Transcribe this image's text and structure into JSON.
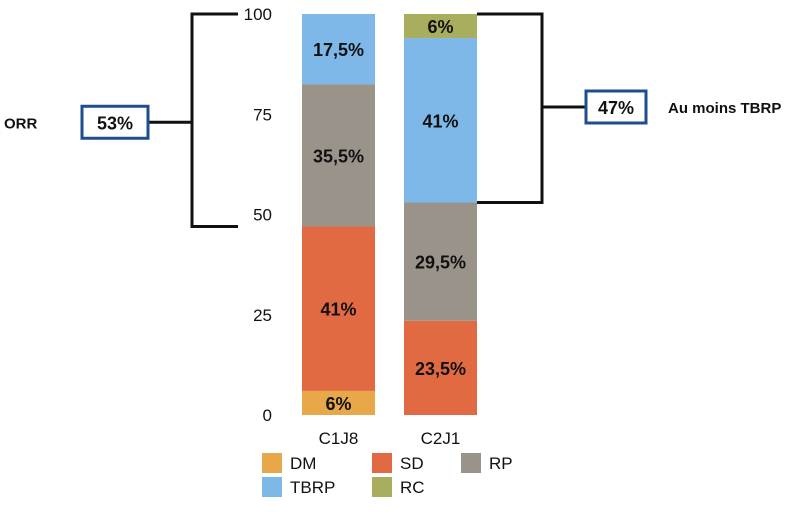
{
  "chart_data": {
    "type": "bar",
    "stacked": true,
    "categories": [
      "C1J8",
      "C2J1"
    ],
    "ylim": [
      0,
      100
    ],
    "yticks": [
      0,
      25,
      50,
      75,
      100
    ],
    "grid": false,
    "legend_position": "bottom",
    "series": [
      {
        "name": "DM",
        "color": "#E8A84A",
        "values": [
          6,
          0
        ]
      },
      {
        "name": "SD",
        "color": "#E26A43",
        "values": [
          41,
          23.5
        ]
      },
      {
        "name": "RP",
        "color": "#9A938A",
        "values": [
          35.5,
          29.5
        ]
      },
      {
        "name": "TBRP",
        "color": "#7DB8E8",
        "values": [
          17.5,
          41
        ]
      },
      {
        "name": "RC",
        "color": "#A9AD5E",
        "values": [
          0,
          6
        ]
      }
    ],
    "data_labels": [
      [
        "6%",
        ""
      ],
      [
        "41%",
        "23,5%"
      ],
      [
        "35,5%",
        "29,5%"
      ],
      [
        "17,5%",
        "41%"
      ],
      [
        "",
        "6%"
      ]
    ],
    "legend_order": [
      "DM",
      "SD",
      "RP",
      "TBRP",
      "RC"
    ],
    "annotations": {
      "left": {
        "label": "ORR",
        "value": "53%",
        "range": [
          47,
          100
        ]
      },
      "right": {
        "label": "Au moins TBRP",
        "value": "47%",
        "range": [
          53,
          100
        ]
      }
    },
    "box_color": "#1F4E8C"
  }
}
